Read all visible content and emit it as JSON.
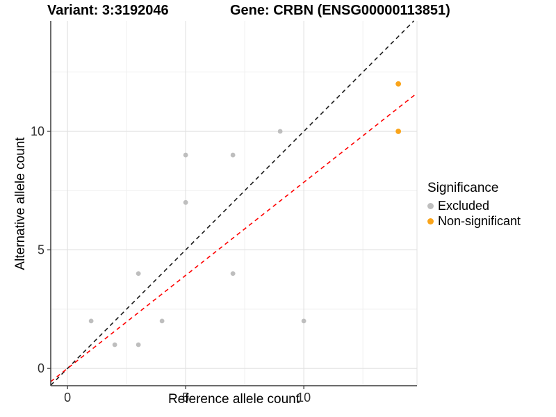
{
  "legend": {
    "title": "Significance",
    "items": [
      {
        "label": "Excluded",
        "color": "#BEBEBE"
      },
      {
        "label": "Non-significant",
        "color": "#FAA41A"
      }
    ]
  },
  "chart_data": {
    "type": "scatter",
    "title_left": "Variant: 3:3192046",
    "title_right": "Gene: CRBN (ENSG00000113851)",
    "xlabel": "Reference allele count",
    "ylabel": "Alternative allele count",
    "xlim": [
      -0.71,
      14.79
    ],
    "ylim": [
      -0.73,
      14.66
    ],
    "x_ticks": [
      0,
      5,
      10
    ],
    "y_ticks": [
      0,
      5,
      10
    ],
    "x_minor_ticks": [
      2.5,
      7.5,
      12.5
    ],
    "y_minor_ticks": [
      2.5,
      7.5,
      12.5
    ],
    "grid": "major+minor",
    "legend_position": "right",
    "colors": {
      "excluded": "#BEBEBE",
      "non_significant": "#FAA41A",
      "identity_line": "#1A1A1A",
      "fit_line": "#FF0000",
      "grid_major": "#E2E2E2",
      "grid_minor": "#EFEFEF",
      "axis_line": "#3A3A3A",
      "tick_text": "#303030"
    },
    "series": [
      {
        "name": "Excluded",
        "color": "#BEBEBE",
        "points": [
          [
            1,
            2
          ],
          [
            2,
            1
          ],
          [
            3,
            1
          ],
          [
            3,
            4
          ],
          [
            4,
            2
          ],
          [
            5,
            7
          ],
          [
            5,
            9
          ],
          [
            7,
            4
          ],
          [
            7,
            9
          ],
          [
            9,
            10
          ],
          [
            10,
            2
          ]
        ]
      },
      {
        "name": "Non-significant",
        "color": "#FAA41A",
        "points": [
          [
            14,
            10
          ],
          [
            14,
            12
          ]
        ]
      }
    ],
    "reference_lines": [
      {
        "name": "identity-line",
        "color": "#1A1A1A",
        "dash": true,
        "slope": 1,
        "intercept": 0
      },
      {
        "name": "fit-line",
        "color": "#FF0000",
        "dash": true,
        "slope": 0.785,
        "intercept": 0
      }
    ]
  }
}
